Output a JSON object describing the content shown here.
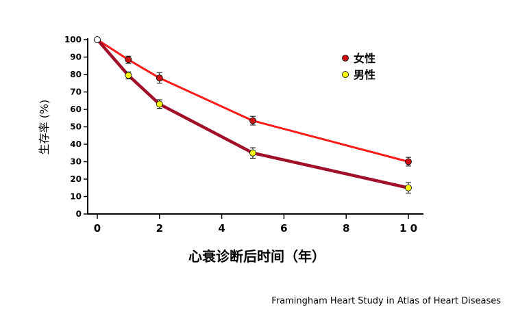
{
  "chart_data": {
    "type": "line",
    "xlabel": "心衰诊断后时间（年）",
    "ylabel": "生存率 (%)",
    "xlim": [
      0,
      10
    ],
    "ylim": [
      0,
      100
    ],
    "xticks": [
      "0",
      "2",
      "4",
      "6",
      "8",
      "1 0"
    ],
    "xtick_values": [
      0,
      2,
      4,
      6,
      8,
      10
    ],
    "yticks": [
      "0",
      "10",
      "20",
      "30",
      "40",
      "50",
      "60",
      "70",
      "80",
      "90",
      "100"
    ],
    "ytick_values": [
      0,
      10,
      20,
      30,
      40,
      50,
      60,
      70,
      80,
      90,
      100
    ],
    "grid": false,
    "legend_position": "top-right",
    "series": [
      {
        "name": "女性",
        "color": "#ff1a1a",
        "marker_color": "#cc1111",
        "x": [
          0,
          1,
          2,
          5,
          10
        ],
        "y": [
          100,
          88.5,
          78,
          53.5,
          30
        ],
        "err": [
          0,
          2,
          3,
          2.5,
          2.5
        ]
      },
      {
        "name": "男性",
        "color": "#a0102a",
        "marker_color": "#ffff00",
        "x": [
          0,
          1,
          2,
          5,
          10
        ],
        "y": [
          100,
          79.5,
          63,
          35,
          15
        ],
        "err": [
          0,
          2,
          2.5,
          3,
          3
        ]
      }
    ]
  },
  "source": "Framingham Heart Study in Atlas of Heart Diseases"
}
